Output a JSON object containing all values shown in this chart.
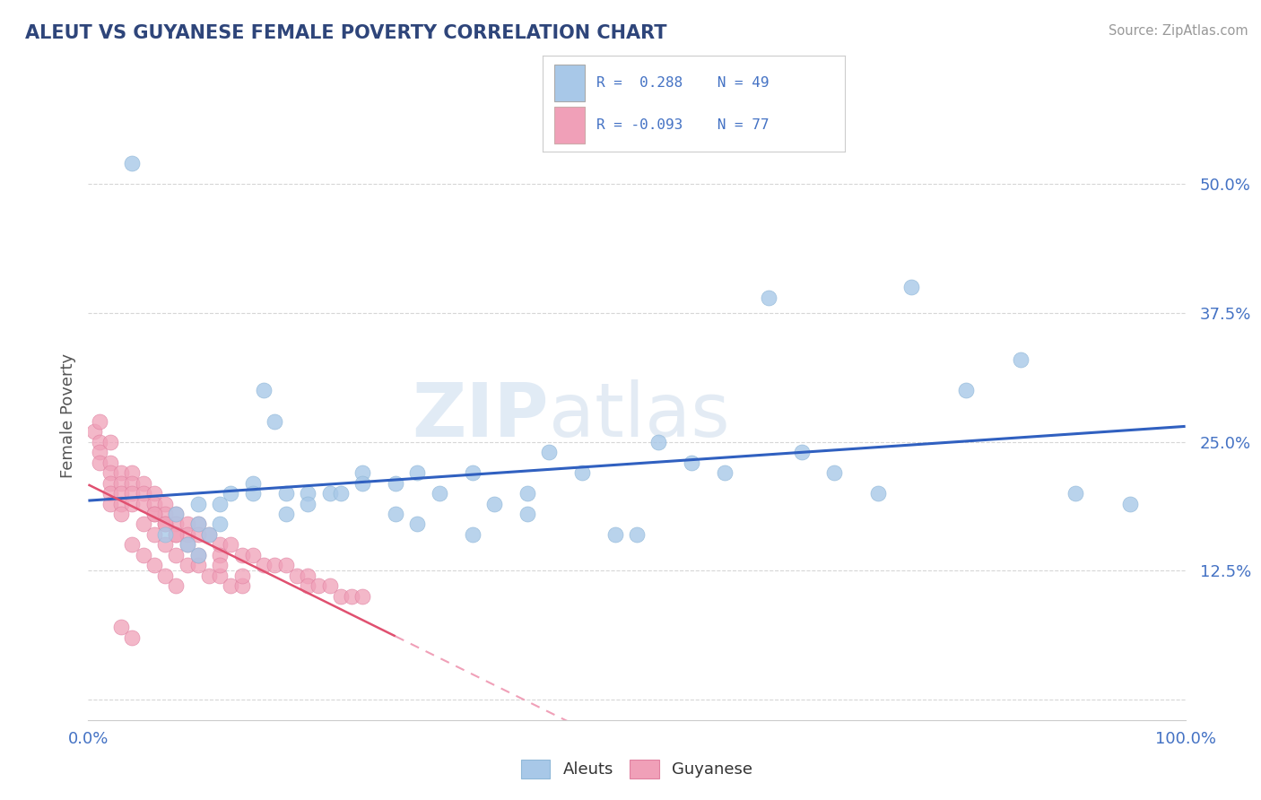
{
  "title": "ALEUT VS GUYANESE FEMALE POVERTY CORRELATION CHART",
  "source": "Source: ZipAtlas.com",
  "ylabel": "Female Poverty",
  "watermark": "ZIPatlas",
  "aleut_color": "#a8c8e8",
  "aleut_edge": "#90b8d8",
  "guyanese_color": "#f0a0b8",
  "guyanese_edge": "#e080a0",
  "trendline_aleut_color": "#3060c0",
  "trendline_guyanese_solid_color": "#e05070",
  "trendline_guyanese_dashed_color": "#f0a0b8",
  "title_color": "#2e457a",
  "source_color": "#999999",
  "background_color": "#ffffff",
  "grid_color": "#cccccc",
  "tick_color": "#4472c4",
  "xlim": [
    0,
    1.0
  ],
  "ylim": [
    -0.02,
    0.57
  ],
  "yticks": [
    0.0,
    0.125,
    0.25,
    0.375,
    0.5
  ],
  "ytick_labels": [
    "",
    "12.5%",
    "25.0%",
    "37.5%",
    "50.0%"
  ],
  "xtick_labels": [
    "0.0%",
    "100.0%"
  ],
  "aleut_x": [
    0.04,
    0.07,
    0.08,
    0.09,
    0.1,
    0.1,
    0.11,
    0.12,
    0.13,
    0.15,
    0.16,
    0.17,
    0.18,
    0.2,
    0.22,
    0.25,
    0.28,
    0.3,
    0.32,
    0.35,
    0.37,
    0.4,
    0.42,
    0.45,
    0.48,
    0.5,
    0.52,
    0.55,
    0.58,
    0.62,
    0.65,
    0.68,
    0.72,
    0.75,
    0.8,
    0.85,
    0.9,
    0.95,
    0.1,
    0.12,
    0.15,
    0.18,
    0.2,
    0.23,
    0.25,
    0.28,
    0.3,
    0.35,
    0.4
  ],
  "aleut_y": [
    0.52,
    0.16,
    0.18,
    0.15,
    0.17,
    0.14,
    0.16,
    0.19,
    0.2,
    0.21,
    0.3,
    0.27,
    0.2,
    0.2,
    0.2,
    0.22,
    0.21,
    0.22,
    0.2,
    0.22,
    0.19,
    0.2,
    0.24,
    0.22,
    0.16,
    0.16,
    0.25,
    0.23,
    0.22,
    0.39,
    0.24,
    0.22,
    0.2,
    0.4,
    0.3,
    0.33,
    0.2,
    0.19,
    0.19,
    0.17,
    0.2,
    0.18,
    0.19,
    0.2,
    0.21,
    0.18,
    0.17,
    0.16,
    0.18
  ],
  "guyanese_x": [
    0.005,
    0.01,
    0.01,
    0.01,
    0.01,
    0.02,
    0.02,
    0.02,
    0.02,
    0.02,
    0.02,
    0.03,
    0.03,
    0.03,
    0.03,
    0.03,
    0.04,
    0.04,
    0.04,
    0.04,
    0.05,
    0.05,
    0.05,
    0.06,
    0.06,
    0.06,
    0.07,
    0.07,
    0.07,
    0.08,
    0.08,
    0.08,
    0.09,
    0.09,
    0.1,
    0.1,
    0.11,
    0.12,
    0.12,
    0.13,
    0.14,
    0.15,
    0.16,
    0.17,
    0.18,
    0.19,
    0.2,
    0.2,
    0.21,
    0.22,
    0.23,
    0.24,
    0.25,
    0.05,
    0.06,
    0.07,
    0.08,
    0.09,
    0.1,
    0.11,
    0.12,
    0.13,
    0.14,
    0.06,
    0.07,
    0.08,
    0.09,
    0.1,
    0.12,
    0.14,
    0.04,
    0.05,
    0.06,
    0.07,
    0.08,
    0.03,
    0.04
  ],
  "guyanese_y": [
    0.26,
    0.27,
    0.25,
    0.24,
    0.23,
    0.25,
    0.23,
    0.22,
    0.21,
    0.2,
    0.19,
    0.22,
    0.21,
    0.2,
    0.19,
    0.18,
    0.22,
    0.21,
    0.2,
    0.19,
    0.21,
    0.2,
    0.19,
    0.2,
    0.19,
    0.18,
    0.19,
    0.18,
    0.17,
    0.18,
    0.17,
    0.16,
    0.17,
    0.16,
    0.17,
    0.16,
    0.16,
    0.15,
    0.14,
    0.15,
    0.14,
    0.14,
    0.13,
    0.13,
    0.13,
    0.12,
    0.12,
    0.11,
    0.11,
    0.11,
    0.1,
    0.1,
    0.1,
    0.17,
    0.16,
    0.15,
    0.14,
    0.13,
    0.13,
    0.12,
    0.12,
    0.11,
    0.11,
    0.18,
    0.17,
    0.16,
    0.15,
    0.14,
    0.13,
    0.12,
    0.15,
    0.14,
    0.13,
    0.12,
    0.11,
    0.07,
    0.06
  ]
}
